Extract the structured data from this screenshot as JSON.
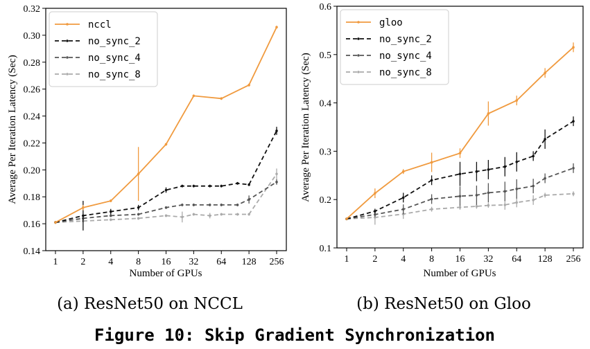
{
  "figure_title": "Figure 10: Skip Gradient Synchronization",
  "chart_data": [
    {
      "type": "line",
      "caption": "(a) ResNet50 on NCCL",
      "xlabel": "Number of GPUs",
      "ylabel": "Average Per Iteration Latency (Sec)",
      "xtick_labels": [
        "1",
        "2",
        "4",
        "8",
        "16",
        "32",
        "64",
        "128",
        "256"
      ],
      "x": [
        1,
        2,
        4,
        8,
        16,
        24,
        32,
        48,
        64,
        96,
        128,
        256
      ],
      "ylim": [
        0.14,
        0.32
      ],
      "yticks": [
        0.14,
        0.16,
        0.18,
        0.2,
        0.22,
        0.24,
        0.26,
        0.28,
        0.3,
        0.32
      ],
      "ytick_labels": [
        "0.14",
        "0.16",
        "0.18",
        "0.20",
        "0.22",
        "0.24",
        "0.26",
        "0.28",
        "0.30",
        "0.32"
      ],
      "legend_position": "top-left",
      "series": [
        {
          "name": "nccl",
          "color": "#f09a3e",
          "dash": "solid",
          "x": [
            1,
            2,
            4,
            8,
            16,
            32,
            64,
            128,
            256
          ],
          "values": [
            0.161,
            0.172,
            0.177,
            0.197,
            0.219,
            0.255,
            0.253,
            0.263,
            0.306
          ],
          "err": [
            0.001,
            0.002,
            0.001,
            0.02,
            0.001,
            0.001,
            0.001,
            0.001,
            0.001
          ]
        },
        {
          "name": "no_sync_2",
          "color": "#111111",
          "dash": "6,4",
          "x": [
            1,
            2,
            4,
            8,
            16,
            24,
            32,
            48,
            64,
            96,
            128,
            256
          ],
          "values": [
            0.161,
            0.166,
            0.169,
            0.172,
            0.185,
            0.188,
            0.188,
            0.188,
            0.188,
            0.19,
            0.189,
            0.229
          ],
          "err": [
            0.001,
            0.011,
            0.002,
            0.002,
            0.002,
            0.001,
            0.001,
            0.001,
            0.001,
            0.001,
            0.001,
            0.003
          ]
        },
        {
          "name": "no_sync_4",
          "color": "#555555",
          "dash": "6,4",
          "x": [
            1,
            2,
            4,
            8,
            16,
            24,
            32,
            48,
            64,
            96,
            128,
            256
          ],
          "values": [
            0.161,
            0.164,
            0.166,
            0.167,
            0.172,
            0.174,
            0.174,
            0.174,
            0.174,
            0.174,
            0.178,
            0.191
          ],
          "err": [
            0.001,
            0.002,
            0.001,
            0.001,
            0.001,
            0.001,
            0.001,
            0.001,
            0.001,
            0.001,
            0.003,
            0.002
          ]
        },
        {
          "name": "no_sync_8",
          "color": "#aaaaaa",
          "dash": "6,4",
          "x": [
            1,
            2,
            4,
            8,
            16,
            24,
            32,
            48,
            64,
            96,
            128,
            256
          ],
          "values": [
            0.161,
            0.162,
            0.163,
            0.164,
            0.166,
            0.165,
            0.167,
            0.166,
            0.167,
            0.167,
            0.167,
            0.197
          ],
          "err": [
            0.001,
            0.001,
            0.001,
            0.001,
            0.001,
            0.004,
            0.001,
            0.002,
            0.001,
            0.001,
            0.001,
            0.004
          ]
        }
      ]
    },
    {
      "type": "line",
      "caption": "(b) ResNet50 on Gloo",
      "xlabel": "Number of GPUs",
      "ylabel": "Average Per Iteration Latency (Sec)",
      "xtick_labels": [
        "1",
        "2",
        "4",
        "8",
        "16",
        "32",
        "64",
        "128",
        "256"
      ],
      "x": [
        1,
        2,
        4,
        8,
        16,
        24,
        32,
        48,
        64,
        96,
        128,
        256
      ],
      "ylim": [
        0.1,
        0.6
      ],
      "yticks": [
        0.1,
        0.2,
        0.3,
        0.4,
        0.5,
        0.6
      ],
      "ytick_labels": [
        "0.1",
        "0.2",
        "0.3",
        "0.4",
        "0.5",
        "0.6"
      ],
      "legend_position": "top-left",
      "series": [
        {
          "name": "gloo",
          "color": "#f09a3e",
          "dash": "solid",
          "x": [
            1,
            2,
            4,
            8,
            16,
            32,
            64,
            128,
            256
          ],
          "values": [
            0.16,
            0.213,
            0.258,
            0.277,
            0.296,
            0.378,
            0.405,
            0.462,
            0.515
          ],
          "err": [
            0.002,
            0.01,
            0.005,
            0.02,
            0.01,
            0.025,
            0.01,
            0.01,
            0.01
          ]
        },
        {
          "name": "no_sync_2",
          "color": "#111111",
          "dash": "6,4",
          "x": [
            1,
            2,
            4,
            8,
            16,
            24,
            32,
            48,
            64,
            96,
            128,
            256
          ],
          "values": [
            0.16,
            0.176,
            0.204,
            0.24,
            0.253,
            0.258,
            0.262,
            0.268,
            0.278,
            0.29,
            0.325,
            0.362
          ],
          "err": [
            0.002,
            0.005,
            0.01,
            0.01,
            0.025,
            0.02,
            0.02,
            0.02,
            0.02,
            0.01,
            0.02,
            0.01
          ]
        },
        {
          "name": "no_sync_4",
          "color": "#555555",
          "dash": "6,4",
          "x": [
            1,
            2,
            4,
            8,
            16,
            24,
            32,
            48,
            64,
            96,
            128,
            256
          ],
          "values": [
            0.16,
            0.169,
            0.18,
            0.201,
            0.207,
            0.209,
            0.214,
            0.217,
            0.222,
            0.228,
            0.244,
            0.265
          ],
          "err": [
            0.002,
            0.005,
            0.01,
            0.01,
            0.02,
            0.02,
            0.02,
            0.02,
            0.02,
            0.015,
            0.01,
            0.01
          ]
        },
        {
          "name": "no_sync_8",
          "color": "#aaaaaa",
          "dash": "6,4",
          "x": [
            1,
            2,
            4,
            8,
            16,
            24,
            32,
            48,
            64,
            96,
            128,
            256
          ],
          "values": [
            0.16,
            0.163,
            0.17,
            0.18,
            0.184,
            0.186,
            0.188,
            0.189,
            0.194,
            0.199,
            0.209,
            0.212
          ],
          "err": [
            0.003,
            0.015,
            0.01,
            0.005,
            0.005,
            0.005,
            0.005,
            0.01,
            0.01,
            0.01,
            0.005,
            0.005
          ]
        }
      ]
    }
  ]
}
